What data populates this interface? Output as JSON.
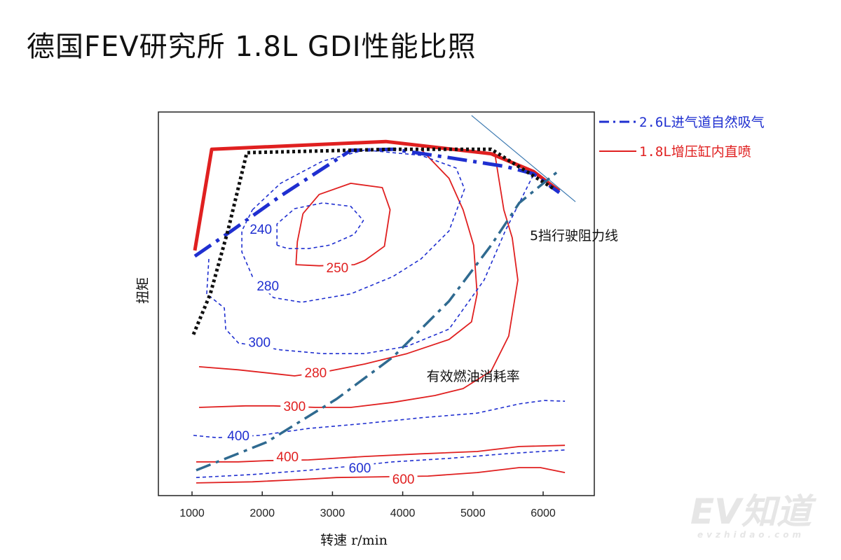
{
  "title": "德国FEV研究所 1.8L GDI性能比照",
  "watermark": {
    "logo": "EV知道",
    "site": "evzhidao.com"
  },
  "chart_data": {
    "type": "line",
    "title": "德国FEV研究所 1.8L GDI性能比照",
    "xlabel": "转速 r/min",
    "ylabel": "扭矩",
    "xlim": [
      520,
      6730
    ],
    "ylim": [
      0,
      100
    ],
    "xticks": [
      1000,
      2000,
      3000,
      4000,
      5000,
      6000
    ],
    "grid": false,
    "legend_position": "right-top outside",
    "legend": [
      {
        "label": "2.6L进气道自然吸气",
        "color": "#1f2fd0",
        "style": "dash-dot"
      },
      {
        "label": "1.8L增压缸内直喷",
        "color": "#e02020",
        "style": "solid"
      }
    ],
    "colors": {
      "blue": "#1f2fd0",
      "red": "#e02020",
      "black": "#111111",
      "steel": "#2f6a90",
      "thin": "#3a78b0"
    },
    "series": [
      {
        "id": "full-load-1.8L",
        "color": "red",
        "style": "thick-solid",
        "x": [
          1040,
          1280,
          3760,
          5260,
          5860,
          6230
        ],
        "y": [
          63.9,
          90.3,
          92.3,
          89.1,
          84.5,
          79.4
        ]
      },
      {
        "id": "full-load-2.6L",
        "color": "blue",
        "style": "thick-dashdot",
        "x": [
          1040,
          1560,
          2260,
          3260,
          3860,
          4660,
          5460,
          5860,
          6230
        ],
        "y": [
          62.4,
          69.0,
          78.1,
          90.0,
          90.3,
          88.1,
          85.8,
          83.9,
          79.0
        ]
      },
      {
        "id": "black-dotted",
        "color": "black",
        "style": "dotted",
        "x": [
          1020,
          1260,
          1510,
          1780,
          3860,
          5260,
          6160
        ],
        "y": [
          42.0,
          52.6,
          69.0,
          89.4,
          90.3,
          90.3,
          79.9
        ]
      },
      {
        "id": "thin-line",
        "color": "thin",
        "style": "thin",
        "x": [
          4980,
          6460
        ],
        "y": [
          99.1,
          76.6
        ]
      },
      {
        "id": "road-load-5th",
        "color": "steel",
        "style": "steel-dashdot",
        "x": [
          1060,
          2060,
          3060,
          3860,
          4660,
          5260,
          5660,
          6210
        ],
        "y": [
          6.6,
          13.9,
          25.2,
          36.1,
          50.7,
          65.3,
          76.3,
          84.5
        ]
      }
    ],
    "contours": [
      {
        "engine": "1.8L",
        "color": "red",
        "style": "solid",
        "label": "250",
        "label_at": [
          3070,
          59.5
        ],
        "x": [
          2580,
          2810,
          3260,
          3710,
          3820,
          3740,
          3460,
          3310,
          2810,
          2480,
          2500,
          2580
        ],
        "y": [
          73.5,
          78.5,
          81.4,
          80.3,
          74.5,
          65.0,
          61.3,
          60.2,
          59.9,
          60.2,
          66.2,
          73.5
        ]
      },
      {
        "engine": "1.8L",
        "color": "red",
        "style": "solid",
        "label": "280",
        "label_at": [
          2760,
          32.1
        ],
        "x": [
          1100,
          1660,
          2260,
          2460,
          2960,
          3460,
          4060,
          4660,
          4980,
          5060,
          5010,
          4860,
          4660,
          4260
        ],
        "y": [
          33.6,
          32.8,
          31.6,
          31.2,
          32.5,
          34.3,
          37.0,
          40.7,
          45.3,
          52.6,
          65.3,
          74.5,
          82.7,
          90.3
        ]
      },
      {
        "engine": "1.8L",
        "color": "red",
        "style": "solid",
        "label": "300",
        "label_at": [
          2460,
          23.4
        ],
        "x": [
          1100,
          1760,
          2160,
          2760,
          3260,
          3860,
          4460,
          4860,
          5260,
          5510,
          5640,
          5560,
          5440,
          5360,
          5310
        ],
        "y": [
          23.0,
          23.4,
          23.4,
          23.0,
          23.0,
          24.3,
          26.1,
          27.9,
          32.5,
          41.6,
          56.2,
          67.2,
          74.5,
          83.6,
          89.4
        ]
      },
      {
        "engine": "1.8L",
        "color": "red",
        "style": "solid",
        "label": "400",
        "label_at": [
          2360,
          10.2
        ],
        "x": [
          1060,
          1660,
          2060,
          2660,
          3460,
          4260,
          5060,
          5660,
          6310
        ],
        "y": [
          8.8,
          8.8,
          9.1,
          9.3,
          10.2,
          10.9,
          11.5,
          12.8,
          13.1
        ]
      },
      {
        "engine": "1.8L",
        "color": "red",
        "style": "solid",
        "label": "600",
        "label_at": [
          4010,
          4.4
        ],
        "x": [
          1060,
          1860,
          2560,
          3060,
          4360,
          5060,
          5660,
          5960,
          6310
        ],
        "y": [
          3.3,
          3.6,
          4.2,
          4.7,
          5.1,
          6.0,
          7.3,
          7.3,
          6.0
        ]
      },
      {
        "engine": "2.6L",
        "color": "blue",
        "style": "dashed",
        "label": "240",
        "label_at": [
          1980,
          69.5
        ],
        "x": [
          2210,
          2210,
          2460,
          2860,
          3260,
          3440,
          3310,
          2960,
          2660,
          2360,
          2210
        ],
        "y": [
          65.3,
          70.8,
          74.8,
          76.3,
          75.4,
          71.7,
          68.1,
          65.3,
          64.4,
          64.4,
          65.3
        ]
      },
      {
        "engine": "2.6L",
        "color": "blue",
        "style": "dashed",
        "label": "280",
        "label_at": [
          2080,
          54.7
        ],
        "x": [
          1860,
          2260,
          2860,
          3460,
          4260,
          4760,
          4880,
          4660,
          4260,
          3860,
          3260,
          2560,
          2160,
          1860,
          1710,
          1710,
          1860
        ],
        "y": [
          74.5,
          81.4,
          87.2,
          90.1,
          88.7,
          85.4,
          79.9,
          69.0,
          61.7,
          57.1,
          52.6,
          50.4,
          51.6,
          57.1,
          63.5,
          69.0,
          74.5
        ]
      },
      {
        "engine": "2.6L",
        "color": "blue",
        "style": "dashed",
        "label": "300",
        "label_at": [
          1960,
          40.1
        ],
        "x": [
          1240,
          1210,
          1460,
          1480,
          1660,
          2260,
          2860,
          3460,
          4060,
          4660,
          5160,
          5460,
          5710,
          5860
        ],
        "y": [
          61.7,
          52.6,
          48.9,
          43.4,
          39.8,
          38.0,
          37.0,
          37.0,
          38.9,
          43.4,
          56.2,
          69.0,
          78.1,
          83.6
        ]
      },
      {
        "engine": "2.6L",
        "color": "blue",
        "style": "dashed",
        "label": "400",
        "label_at": [
          1660,
          15.7
        ],
        "x": [
          1020,
          1360,
          1960,
          2660,
          3460,
          4260,
          5060,
          5660,
          6010,
          6310
        ],
        "y": [
          15.7,
          15.1,
          15.7,
          17.5,
          18.8,
          20.3,
          21.5,
          23.9,
          24.8,
          24.6
        ]
      },
      {
        "engine": "2.6L",
        "color": "blue",
        "style": "dashed",
        "label": "600",
        "label_at": [
          3390,
          7.3
        ],
        "x": [
          1060,
          1860,
          2660,
          3060,
          3860,
          4660,
          5460,
          6310
        ],
        "y": [
          4.7,
          5.5,
          6.6,
          7.3,
          8.8,
          9.7,
          10.9,
          11.9
        ]
      }
    ],
    "annotations": [
      {
        "text": "5挡行驶阻力线",
        "at": [
          5810,
          67.9
        ]
      },
      {
        "text": "有效燃油消耗率",
        "at": [
          4340,
          31.2
        ]
      }
    ]
  }
}
